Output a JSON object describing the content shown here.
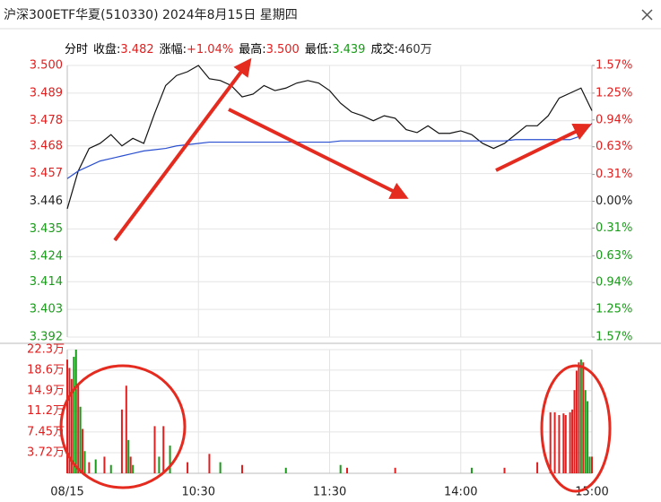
{
  "header": {
    "title": "沪深300ETF华夏(510330) 2024年8月15日 星期四",
    "info": [
      {
        "label": "分时",
        "value": null,
        "color": "#000000"
      },
      {
        "label": "收盘:",
        "value": "3.482",
        "color": "#e02020"
      },
      {
        "label": "涨幅:",
        "value": "+1.04%",
        "color": "#e02020"
      },
      {
        "label": "最高:",
        "value": "3.500",
        "color": "#e02020"
      },
      {
        "label": "最低:",
        "value": "3.439",
        "color": "#1a9a1a"
      },
      {
        "label": "成交:",
        "value": "460万",
        "color": "#333333"
      }
    ]
  },
  "chart_data": [
    {
      "type": "line",
      "x": [
        0,
        5,
        10,
        15,
        20,
        25,
        30,
        35,
        40,
        45,
        50,
        55,
        60,
        65,
        70,
        75,
        80,
        85,
        90,
        95,
        100,
        105,
        110,
        115,
        120,
        125,
        130,
        135,
        140,
        145,
        150,
        155,
        160,
        165,
        170,
        175,
        180,
        185,
        190,
        195,
        200,
        205,
        210,
        215,
        220,
        225,
        230,
        235,
        240
      ],
      "series": [
        {
          "color": "#111111",
          "values": [
            3.443,
            3.458,
            3.467,
            3.469,
            3.4725,
            3.468,
            3.471,
            3.469,
            3.481,
            3.492,
            3.496,
            3.4975,
            3.5,
            3.4947,
            3.494,
            3.492,
            3.4875,
            3.4886,
            3.492,
            3.49,
            3.491,
            3.493,
            3.494,
            3.493,
            3.49,
            3.485,
            3.4815,
            3.48,
            3.478,
            3.48,
            3.479,
            3.4745,
            3.4733,
            3.476,
            3.473,
            3.473,
            3.474,
            3.4725,
            3.469,
            3.467,
            3.469,
            3.4725,
            3.476,
            3.476,
            3.48,
            3.487,
            3.489,
            3.491,
            3.482
          ]
        },
        {
          "color": "#2a4fd0",
          "values": [
            3.455,
            3.458,
            3.46,
            3.462,
            3.463,
            3.464,
            3.465,
            3.466,
            3.4665,
            3.467,
            3.468,
            3.4685,
            3.469,
            3.4695,
            3.4695,
            3.4695,
            3.4695,
            3.4695,
            3.4695,
            3.4695,
            3.4695,
            3.4695,
            3.4695,
            3.4695,
            3.4695,
            3.47,
            3.47,
            3.47,
            3.47,
            3.47,
            3.47,
            3.47,
            3.47,
            3.47,
            3.47,
            3.47,
            3.47,
            3.47,
            3.47,
            3.47,
            3.47,
            3.4705,
            3.4705,
            3.4705,
            3.4705,
            3.4705,
            3.4705,
            3.472,
            3.477
          ]
        }
      ],
      "xlim": [
        0,
        240
      ],
      "ylim": [
        3.392,
        3.5
      ],
      "yticks": [
        {
          "value": 3.5,
          "label": "3.500"
        },
        3.489,
        3.478,
        3.468,
        3.457,
        3.446,
        3.435,
        3.424,
        3.414,
        3.403,
        3.392
      ],
      "y2lim": [
        -1.57,
        1.57
      ],
      "y2ticks": [
        {
          "value": 1.57,
          "label": "1.57%"
        },
        {
          "value": 1.25,
          "label": "1.25%"
        },
        {
          "value": 0.94,
          "label": "0.94%"
        },
        {
          "value": 0.63,
          "label": "0.63%"
        },
        {
          "value": 0.31,
          "label": "0.31%"
        },
        {
          "value": 0,
          "label": "0.00%"
        },
        {
          "value": -0.31,
          "label": "0.31%"
        },
        {
          "value": -0.63,
          "label": "0.63%"
        },
        {
          "value": -0.94,
          "label": "0.94%"
        },
        {
          "value": -1.25,
          "label": "1.25%"
        },
        {
          "value": -1.57,
          "label": "1.57%"
        }
      ],
      "up_color": "#e02020",
      "down_color": "#1a9a1a",
      "flat_color": "#222222",
      "grid": true
    },
    {
      "type": "bar",
      "x": [
        0,
        1,
        2,
        3,
        4,
        5,
        6,
        7,
        8,
        10,
        13,
        17,
        20,
        25,
        27,
        28,
        29,
        30,
        40,
        42,
        44,
        47,
        55,
        65,
        70,
        80,
        100,
        125,
        128,
        150,
        185,
        200,
        215,
        221,
        223,
        225,
        227,
        228,
        230,
        231,
        232,
        233,
        234,
        235,
        236,
        237,
        238,
        239,
        240
      ],
      "values": [
        20.5,
        19,
        17,
        21,
        22.3,
        16,
        12,
        8,
        4,
        2,
        2.5,
        3,
        1.5,
        11.5,
        15.8,
        6,
        3,
        1.5,
        8.5,
        3,
        8.5,
        5,
        2,
        3.5,
        2,
        1.5,
        1,
        1.5,
        1,
        1,
        1,
        1,
        2,
        11,
        11,
        10.5,
        10.8,
        10.5,
        11,
        11.5,
        15,
        18.5,
        20,
        20.5,
        20,
        15,
        13,
        3,
        3
      ],
      "colors": [
        "#e02020",
        "#e02020",
        "#e02020",
        "#1a9a1a",
        "#1a9a1a",
        "#e02020",
        "#1a9a1a",
        "#e02020",
        "#1a9a1a",
        "#e02020",
        "#1a9a1a",
        "#e02020",
        "#1a9a1a",
        "#e02020",
        "#e02020",
        "#1a9a1a",
        "#e02020",
        "#1a9a1a",
        "#e02020",
        "#1a9a1a",
        "#e02020",
        "#1a9a1a",
        "#e02020",
        "#e02020",
        "#1a9a1a",
        "#e02020",
        "#1a9a1a",
        "#1a9a1a",
        "#e02020",
        "#e02020",
        "#1a9a1a",
        "#e02020",
        "#e02020",
        "#e02020",
        "#e02020",
        "#e02020",
        "#e02020",
        "#e02020",
        "#e02020",
        "#e02020",
        "#e02020",
        "#e02020",
        "#e02020",
        "#1a9a1a",
        "#e02020",
        "#1a9a1a",
        "#1a9a1a",
        "#1a9a1a",
        "#e02020"
      ],
      "xlim": [
        0,
        240
      ],
      "xticks": [
        {
          "value": 0,
          "label": "08/15"
        },
        {
          "value": 60,
          "label": "10:30"
        },
        {
          "value": 120,
          "label": "11:30"
        },
        {
          "value": 180,
          "label": "14:00"
        },
        {
          "value": 240,
          "label": "15:00"
        }
      ],
      "ylim": [
        0,
        22.3
      ],
      "yticks": [
        {
          "value": 22.3,
          "label": "22.3万"
        },
        {
          "value": 18.6,
          "label": "18.6万"
        },
        {
          "value": 14.9,
          "label": "14.9万"
        },
        {
          "value": 11.2,
          "label": "11.2万"
        },
        {
          "value": 7.45,
          "label": "7.45万"
        },
        {
          "value": 3.72,
          "label": "3.72万"
        }
      ],
      "label_color": "#e02020"
    }
  ]
}
